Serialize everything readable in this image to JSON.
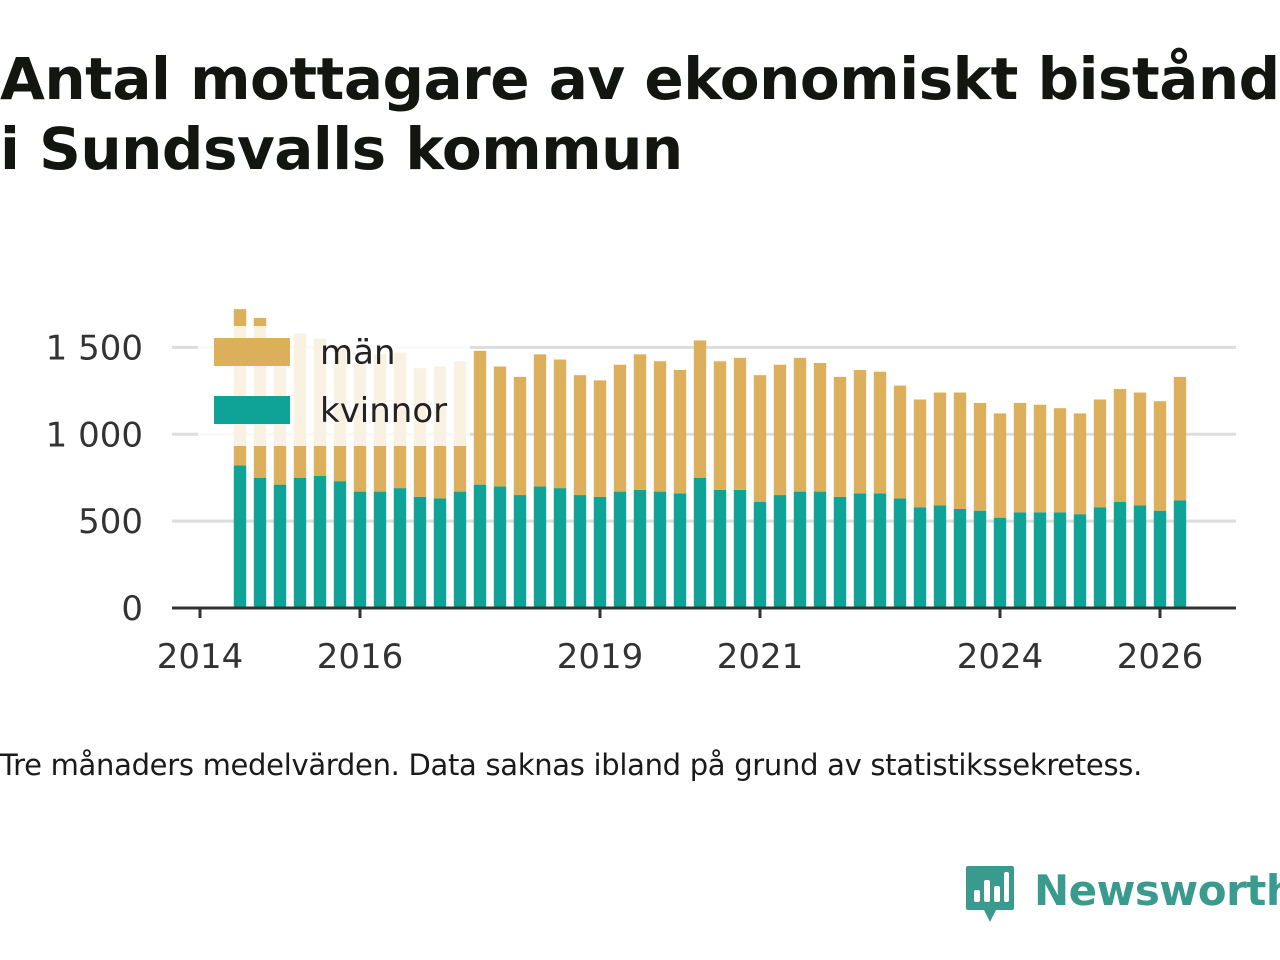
{
  "title": {
    "line1": "Antal mottagare av ekonomiskt bistånd",
    "line2": "i Sundsvalls kommun"
  },
  "footnote": "Tre månaders medelvärden. Data saknas ibland på grund av statistikssekretess.",
  "brand": {
    "name": "Newsworthy",
    "icon": "newsworthy-logo-icon",
    "color": "#3a9a8e"
  },
  "colors": {
    "kvinnor": "#0fa397",
    "man": "#dcaf5a",
    "grid": "#dddddd",
    "axis": "#333333",
    "text": "#333333"
  },
  "chart_data": {
    "type": "bar",
    "stacked": true,
    "title": "Antal mottagare av ekonomiskt bistånd i Sundsvalls kommun",
    "xlabel": "",
    "ylabel": "",
    "xlim": [
      2013.65,
      2026.95
    ],
    "ylim": [
      0,
      1600
    ],
    "yticks": [
      0,
      500,
      1000,
      1500
    ],
    "ytick_labels": [
      "0",
      "500",
      "1 000",
      "1 500"
    ],
    "xticks": [
      2014,
      2016,
      2019,
      2021,
      2024,
      2026
    ],
    "xtick_labels": [
      "2014",
      "2016",
      "2019",
      "2021",
      "2024",
      "2026"
    ],
    "legend": {
      "position": "top-left",
      "items": [
        "män",
        "kvinnor"
      ]
    },
    "x": [
      2014.5,
      2014.75,
      2015.0,
      2015.25,
      2015.5,
      2015.75,
      2016.0,
      2016.25,
      2016.5,
      2016.75,
      2017.0,
      2017.25,
      2017.5,
      2017.75,
      2018.0,
      2018.25,
      2018.5,
      2018.75,
      2019.0,
      2019.25,
      2019.5,
      2019.75,
      2020.0,
      2020.25,
      2020.5,
      2020.75,
      2021.0,
      2021.25,
      2021.5,
      2021.75,
      2022.0,
      2022.25,
      2022.5,
      2022.75,
      2023.0,
      2023.25,
      2023.5,
      2023.75,
      2024.0,
      2024.25,
      2024.5,
      2024.75,
      2025.0,
      2025.25,
      2025.5,
      2025.75,
      2026.0,
      2026.25
    ],
    "series": [
      {
        "name": "kvinnor",
        "values": [
          820,
          750,
          710,
          750,
          760,
          730,
          670,
          670,
          690,
          640,
          630,
          670,
          710,
          700,
          650,
          700,
          690,
          650,
          640,
          670,
          680,
          670,
          660,
          750,
          680,
          680,
          610,
          650,
          670,
          670,
          640,
          660,
          660,
          630,
          580,
          590,
          570,
          560,
          520,
          550,
          550,
          550,
          540,
          580,
          610,
          590,
          560,
          620
        ]
      },
      {
        "name": "män",
        "values": [
          900,
          920,
          780,
          830,
          790,
          780,
          740,
          790,
          780,
          740,
          760,
          750,
          770,
          690,
          680,
          760,
          740,
          690,
          670,
          730,
          780,
          750,
          710,
          790,
          740,
          760,
          730,
          750,
          770,
          740,
          690,
          710,
          700,
          650,
          620,
          650,
          670,
          620,
          600,
          630,
          620,
          600,
          580,
          620,
          650,
          650,
          630,
          710
        ]
      }
    ]
  }
}
